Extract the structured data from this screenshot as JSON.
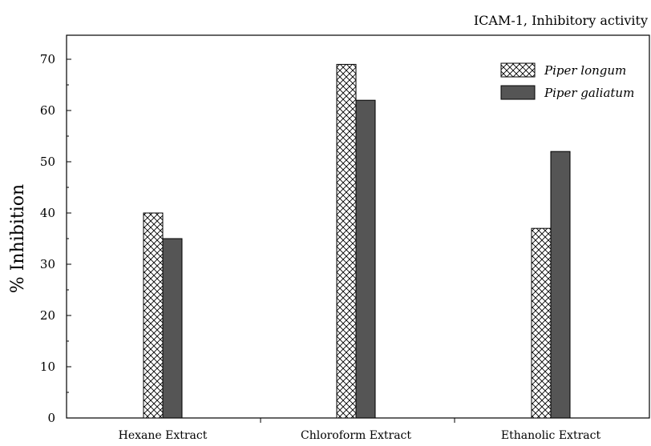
{
  "chart_data": {
    "type": "bar",
    "title": "ICAM-1, Inhibitory activity",
    "xlabel": "",
    "ylabel": "% Inhibition",
    "ylim": [
      0,
      75
    ],
    "yticks": [
      0,
      10,
      20,
      30,
      40,
      50,
      60,
      70
    ],
    "grid": false,
    "legend_position": "top-right",
    "categories": [
      "Hexane Extract",
      "Chloroform Extract",
      "Ethanolic Extract"
    ],
    "series": [
      {
        "name": "Piper longum",
        "values": [
          40,
          69,
          37
        ],
        "fill": "crosshatch",
        "color": "#ffffff"
      },
      {
        "name": "Piper galiatum",
        "values": [
          35,
          62,
          52
        ],
        "fill": "solid",
        "color": "#555555"
      }
    ]
  }
}
